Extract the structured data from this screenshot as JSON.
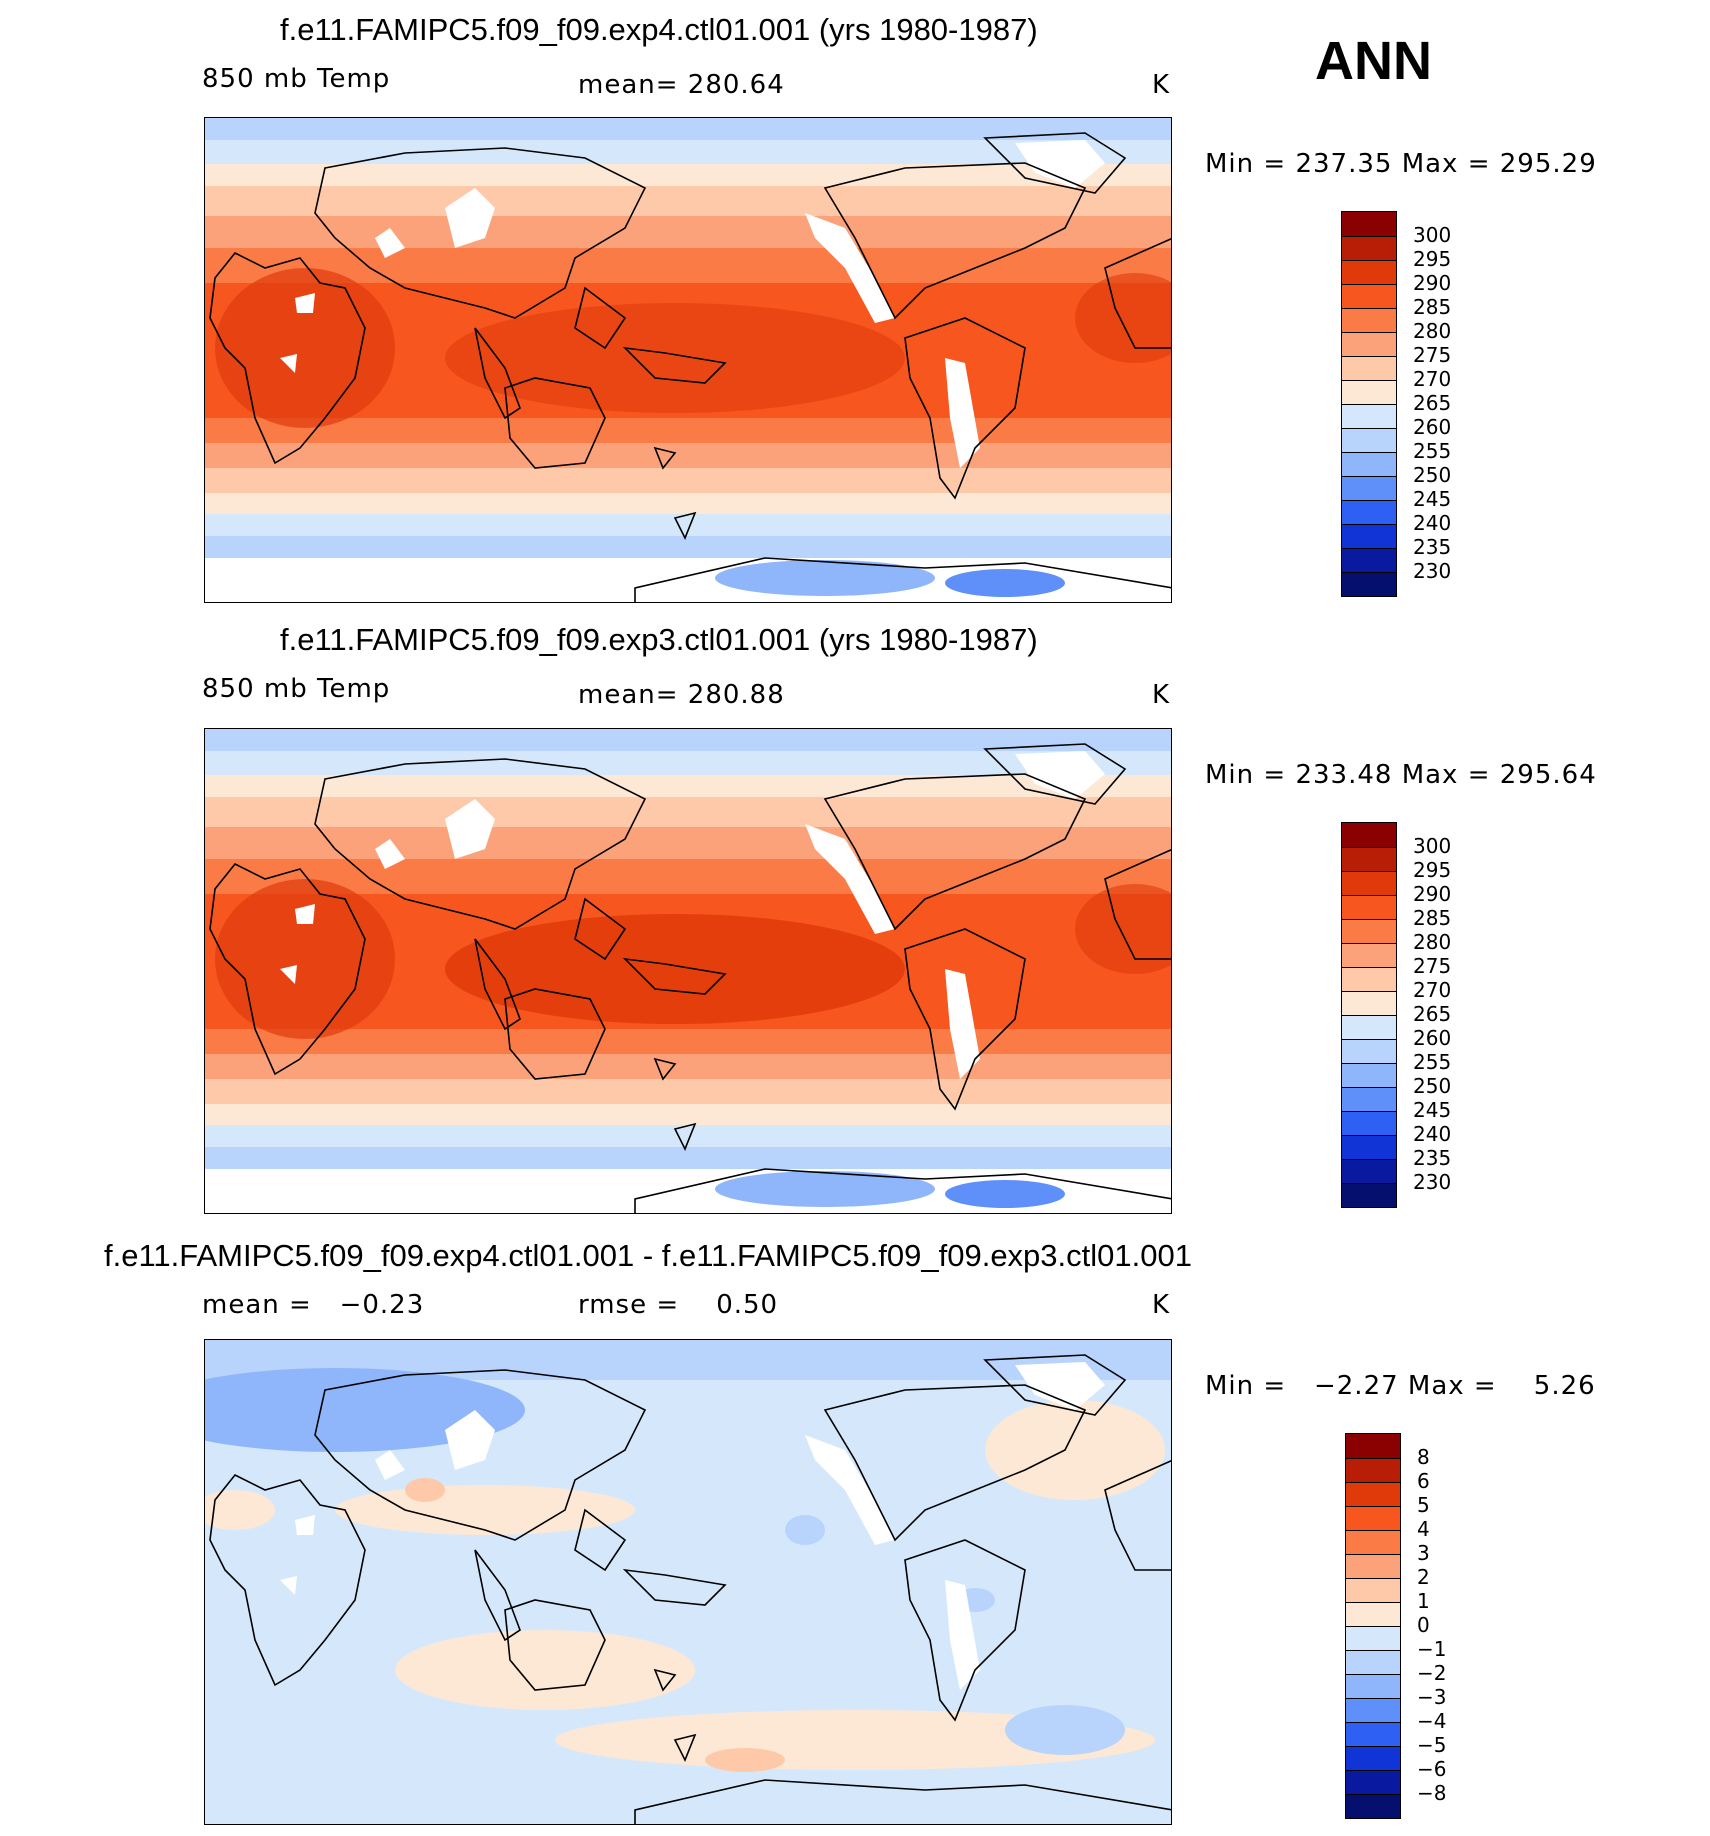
{
  "season": "ANN",
  "chart_data": [
    {
      "type": "heatmap",
      "title": "f.e11.FAMIPC5.f09_f09.exp4.ctl01.001 (yrs 1980-1987)",
      "variable": "850 mb Temp",
      "mean_text": "mean= 280.64",
      "units": "K",
      "range_text": "Min = 237.35 Max = 295.29",
      "min": 237.35,
      "max": 295.29,
      "mean": 280.64,
      "colorbar_levels": [
        "300",
        "295",
        "290",
        "285",
        "280",
        "275",
        "270",
        "265",
        "260",
        "255",
        "250",
        "245",
        "240",
        "235",
        "230"
      ],
      "colorbar_colors": [
        "#8b0000",
        "#b81e05",
        "#e03a0b",
        "#f7561f",
        "#fb7b47",
        "#fca27a",
        "#fdc9a9",
        "#fde8d6",
        "#d5e8fb",
        "#b8d3fc",
        "#8fb6fb",
        "#5f8ff8",
        "#2e60f4",
        "#1034d6",
        "#0a1aa0",
        "#050f6e"
      ]
    },
    {
      "type": "heatmap",
      "title": "f.e11.FAMIPC5.f09_f09.exp3.ctl01.001 (yrs 1980-1987)",
      "variable": "850 mb Temp",
      "mean_text": "mean= 280.88",
      "units": "K",
      "range_text": "Min = 233.48 Max = 295.64",
      "min": 233.48,
      "max": 295.64,
      "mean": 280.88,
      "colorbar_levels": [
        "300",
        "295",
        "290",
        "285",
        "280",
        "275",
        "270",
        "265",
        "260",
        "255",
        "250",
        "245",
        "240",
        "235",
        "230"
      ],
      "colorbar_colors": [
        "#8b0000",
        "#b81e05",
        "#e03a0b",
        "#f7561f",
        "#fb7b47",
        "#fca27a",
        "#fdc9a9",
        "#fde8d6",
        "#d5e8fb",
        "#b8d3fc",
        "#8fb6fb",
        "#5f8ff8",
        "#2e60f4",
        "#1034d6",
        "#0a1aa0",
        "#050f6e"
      ]
    },
    {
      "type": "heatmap",
      "title": "f.e11.FAMIPC5.f09_f09.exp4.ctl01.001 - f.e11.FAMIPC5.f09_f09.exp3.ctl01.001",
      "mean_text": "mean =   −0.23",
      "rmse_text": "rmse =    0.50",
      "units": "K",
      "range_text": "Min =   −2.27 Max =    5.26",
      "min": -2.27,
      "max": 5.26,
      "mean": -0.23,
      "rmse": 0.5,
      "colorbar_levels": [
        "8",
        "6",
        "5",
        "4",
        "3",
        "2",
        "1",
        "0",
        "−1",
        "−2",
        "−3",
        "−4",
        "−5",
        "−6",
        "−8"
      ],
      "colorbar_colors": [
        "#8b0000",
        "#b81e05",
        "#e03a0b",
        "#f7561f",
        "#fb7b47",
        "#fca27a",
        "#fdc9a9",
        "#fde8d6",
        "#d5e8fb",
        "#b8d3fc",
        "#8fb6fb",
        "#5f8ff8",
        "#2e60f4",
        "#1034d6",
        "#0a1aa0",
        "#050f6e"
      ]
    }
  ]
}
